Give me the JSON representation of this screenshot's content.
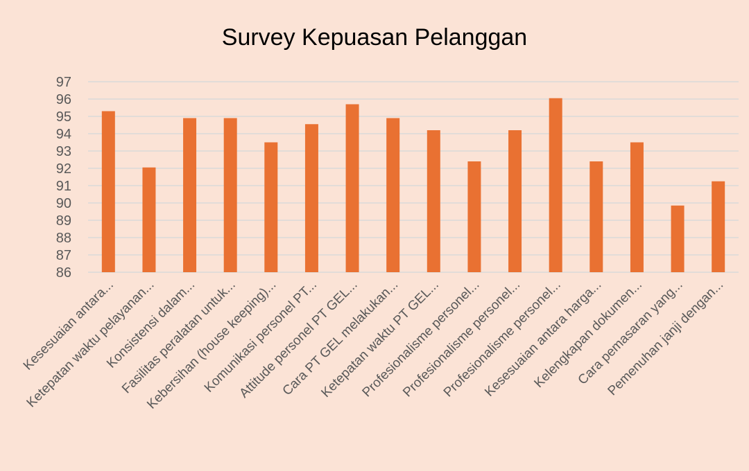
{
  "chart_data": {
    "type": "bar",
    "title": "Survey Kepuasan Pelanggan",
    "xlabel": "",
    "ylabel": "",
    "ylim": [
      86,
      97
    ],
    "y_ticks": [
      86,
      87,
      88,
      89,
      90,
      91,
      92,
      93,
      94,
      95,
      96,
      97
    ],
    "grid": true,
    "legend": "none",
    "categories": [
      "Kesesuaian antara...",
      "Ketepatan waktu pelayanan...",
      "Konsistensi dalam...",
      "Fasilitas peralatan untuk...",
      "Kebersihan (house keeping)...",
      "Komunikasi personel PT...",
      "Attitude personel PT GEL...",
      "Cara PT GEL melakukan...",
      "Ketepatan waktu PT GEL...",
      "Profesionalisme personel...",
      "Profesionalisme personel...",
      "Profesionalisme personel...",
      "Kesesuaian antara harga...",
      "Kelengkapan dokumen...",
      "Cara pemasaran yang...",
      "Pemenuhan janji dengan..."
    ],
    "values": [
      95.3,
      92.05,
      94.9,
      94.9,
      93.5,
      94.55,
      95.7,
      94.9,
      94.2,
      92.4,
      94.2,
      96.05,
      92.4,
      93.5,
      89.85,
      91.25
    ],
    "colors": {
      "background": "#fbe3d6",
      "bar": "#e97132",
      "grid": "#d9d9d9",
      "text": "#595959",
      "title": "#000000"
    }
  }
}
